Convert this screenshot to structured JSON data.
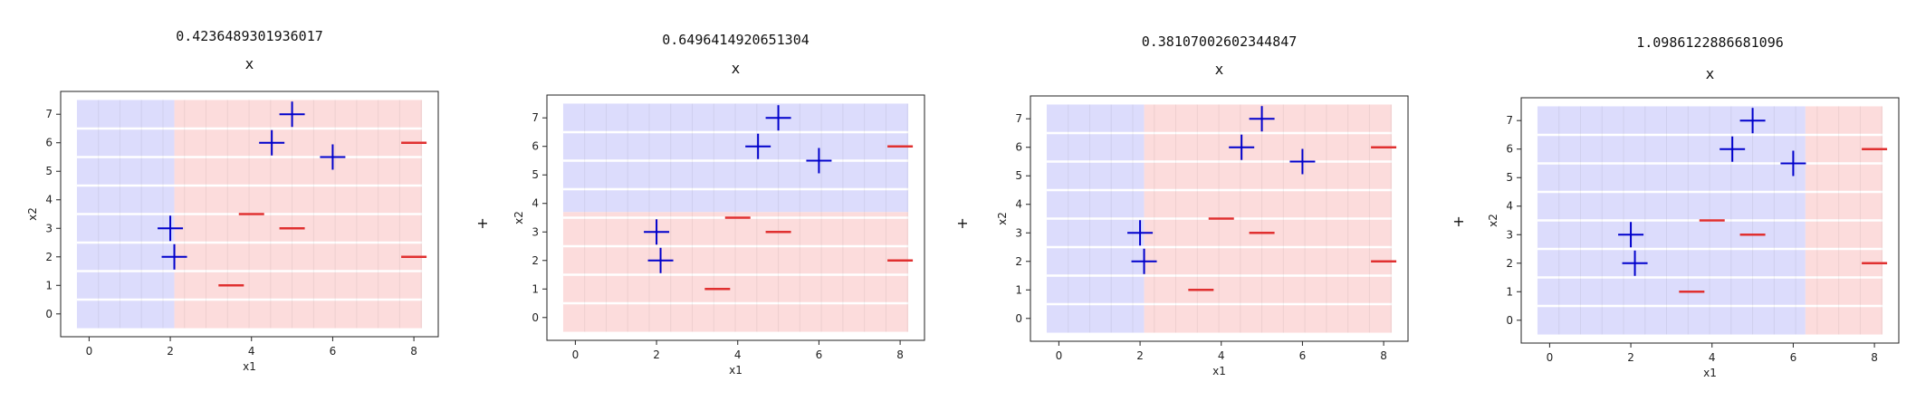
{
  "chart_data": [
    {
      "type": "scatter",
      "title": "0.4236489301936017",
      "subtitle": "x",
      "xlabel": "x1",
      "ylabel": "x2",
      "xlim": [
        -0.7,
        8.6
      ],
      "ylim": [
        -0.8,
        7.8
      ],
      "xticks": [
        "0",
        "2",
        "4",
        "6",
        "8"
      ],
      "yticks": [
        "0",
        "1",
        "2",
        "3",
        "4",
        "5",
        "6",
        "7"
      ],
      "split_axis": "x",
      "split": 2.1,
      "low_color": "#dcdcfc",
      "high_color": "#fcdcdc",
      "series": [
        {
          "marker": "+",
          "color": "#0000cc",
          "x": [
            2,
            2.1,
            4.5,
            5,
            6
          ],
          "y": [
            3,
            2,
            6,
            7,
            5.5
          ]
        },
        {
          "marker": "_",
          "color": "#e03030",
          "x": [
            3.5,
            4,
            5,
            8,
            8
          ],
          "y": [
            1,
            3.5,
            3,
            6,
            2
          ]
        }
      ],
      "between_symbol": "+"
    },
    {
      "type": "scatter",
      "title": "0.6496414920651304",
      "subtitle": "x",
      "xlabel": "x1",
      "ylabel": "x2",
      "xlim": [
        -0.7,
        8.6
      ],
      "ylim": [
        -0.8,
        7.8
      ],
      "xticks": [
        "0",
        "2",
        "4",
        "6",
        "8"
      ],
      "yticks": [
        "0",
        "1",
        "2",
        "3",
        "4",
        "5",
        "6",
        "7"
      ],
      "split_axis": "y",
      "split": 3.7,
      "low_color": "#fcdcdc",
      "high_color": "#dcdcfc",
      "series": [
        {
          "marker": "+",
          "color": "#0000cc",
          "x": [
            2,
            2.1,
            4.5,
            5,
            6
          ],
          "y": [
            3,
            2,
            6,
            7,
            5.5
          ]
        },
        {
          "marker": "_",
          "color": "#e03030",
          "x": [
            3.5,
            4,
            5,
            8,
            8
          ],
          "y": [
            1,
            3.5,
            3,
            6,
            2
          ]
        }
      ],
      "between_symbol": "+"
    },
    {
      "type": "scatter",
      "title": "0.38107002602344847",
      "subtitle": "x",
      "xlabel": "x1",
      "ylabel": "x2",
      "xlim": [
        -0.7,
        8.6
      ],
      "ylim": [
        -0.8,
        7.8
      ],
      "xticks": [
        "0",
        "2",
        "4",
        "6",
        "8"
      ],
      "yticks": [
        "0",
        "1",
        "2",
        "3",
        "4",
        "5",
        "6",
        "7"
      ],
      "split_axis": "x",
      "split": 2.1,
      "low_color": "#dcdcfc",
      "high_color": "#fcdcdc",
      "series": [
        {
          "marker": "+",
          "color": "#0000cc",
          "x": [
            2,
            2.1,
            4.5,
            5,
            6
          ],
          "y": [
            3,
            2,
            6,
            7,
            5.5
          ]
        },
        {
          "marker": "_",
          "color": "#e03030",
          "x": [
            3.5,
            4,
            5,
            8,
            8
          ],
          "y": [
            1,
            3.5,
            3,
            6,
            2
          ]
        }
      ],
      "between_symbol": "+"
    },
    {
      "type": "scatter",
      "title": "1.0986122886681096",
      "subtitle": "x",
      "xlabel": "x1",
      "ylabel": "x2",
      "xlim": [
        -0.7,
        8.6
      ],
      "ylim": [
        -0.8,
        7.8
      ],
      "xticks": [
        "0",
        "2",
        "4",
        "6",
        "8"
      ],
      "yticks": [
        "0",
        "1",
        "2",
        "3",
        "4",
        "5",
        "6",
        "7"
      ],
      "split_axis": "x",
      "split": 6.3,
      "low_color": "#dcdcfc",
      "high_color": "#fcdcdc",
      "series": [
        {
          "marker": "+",
          "color": "#0000cc",
          "x": [
            2,
            2.1,
            4.5,
            5,
            6
          ],
          "y": [
            3,
            2,
            6,
            7,
            5.5
          ]
        },
        {
          "marker": "_",
          "color": "#e03030",
          "x": [
            3.5,
            4,
            5,
            8,
            8
          ],
          "y": [
            1,
            3.5,
            3,
            6,
            2
          ]
        }
      ]
    }
  ]
}
